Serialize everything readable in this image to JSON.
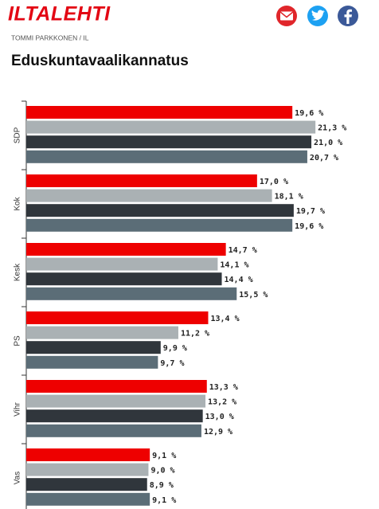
{
  "header": {
    "logo": "ILTALEHTI"
  },
  "caption": {
    "credit": "TOMMI PARKKONEN / IL"
  },
  "chart_data": {
    "type": "hbar",
    "title": "Eduskuntavaalikannatus",
    "categories": [
      "SDP",
      "Kok",
      "Kesk",
      "PS",
      "Vihr",
      "Vas"
    ],
    "series": [
      {
        "color": "#ee0000",
        "values": [
          19.6,
          17.0,
          14.7,
          13.4,
          13.3,
          9.1
        ],
        "value_labels": [
          "19,6 %",
          "17,0 %",
          "14,7 %",
          "13,4 %",
          "13,3 %",
          "9,1 %"
        ]
      },
      {
        "color": "#aab1b4",
        "values": [
          21.3,
          18.1,
          14.1,
          11.2,
          13.2,
          9.0
        ],
        "value_labels": [
          "21,3 %",
          "18,1 %",
          "14,1 %",
          "11,2 %",
          "13,2 %",
          "9,0 %"
        ]
      },
      {
        "color": "#30363c",
        "values": [
          21.0,
          19.7,
          14.4,
          9.9,
          13.0,
          8.9
        ],
        "value_labels": [
          "21,0 %",
          "19,7 %",
          "14,4 %",
          "9,9 %",
          "13,0 %",
          "8,9 %"
        ]
      },
      {
        "color": "#5b6d77",
        "values": [
          20.7,
          19.6,
          15.5,
          9.7,
          12.9,
          9.1
        ],
        "value_labels": [
          "20,7 %",
          "19,6 %",
          "15,5 %",
          "9,7 %",
          "12,9 %",
          "9,1 %"
        ]
      }
    ]
  }
}
